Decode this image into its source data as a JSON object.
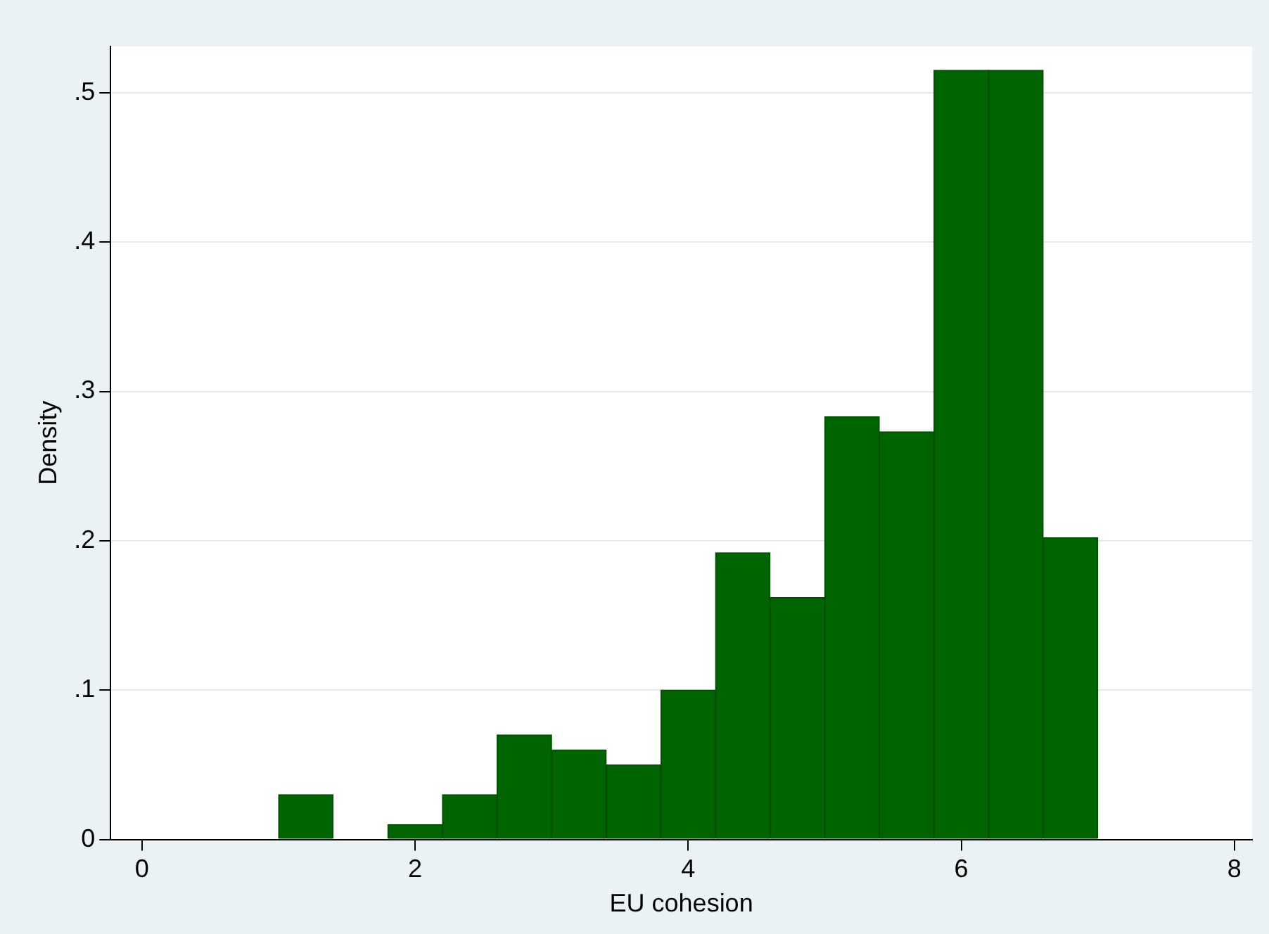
{
  "chart_data": {
    "type": "histogram",
    "xlabel": "EU cohesion",
    "ylabel": "Density",
    "bins": [
      1.0,
      1.4,
      1.8,
      2.2,
      2.6,
      3.0,
      3.4,
      3.8,
      4.2,
      4.6,
      5.0,
      5.4,
      5.8,
      6.2,
      6.6,
      7.0
    ],
    "values": [
      0.03,
      0,
      0.01,
      0.03,
      0.07,
      0.06,
      0.05,
      0.1,
      0.192,
      0.162,
      0.283,
      0.273,
      0.515,
      0.515,
      0.202
    ],
    "color": "#006400",
    "xlim": [
      -0.23,
      8.13
    ],
    "xticks": [
      0,
      2,
      4,
      6,
      8
    ],
    "ylim": [
      0,
      0.531
    ],
    "yticks": [
      0,
      {
        "value": 0.1,
        "label": ".1"
      },
      {
        "value": 0.2,
        "label": ".2"
      },
      {
        "value": 0.3,
        "label": ".3"
      },
      {
        "value": 0.4,
        "label": ".4"
      },
      {
        "value": 0.5,
        "label": ".5"
      }
    ],
    "grid": "y",
    "legend": false
  }
}
